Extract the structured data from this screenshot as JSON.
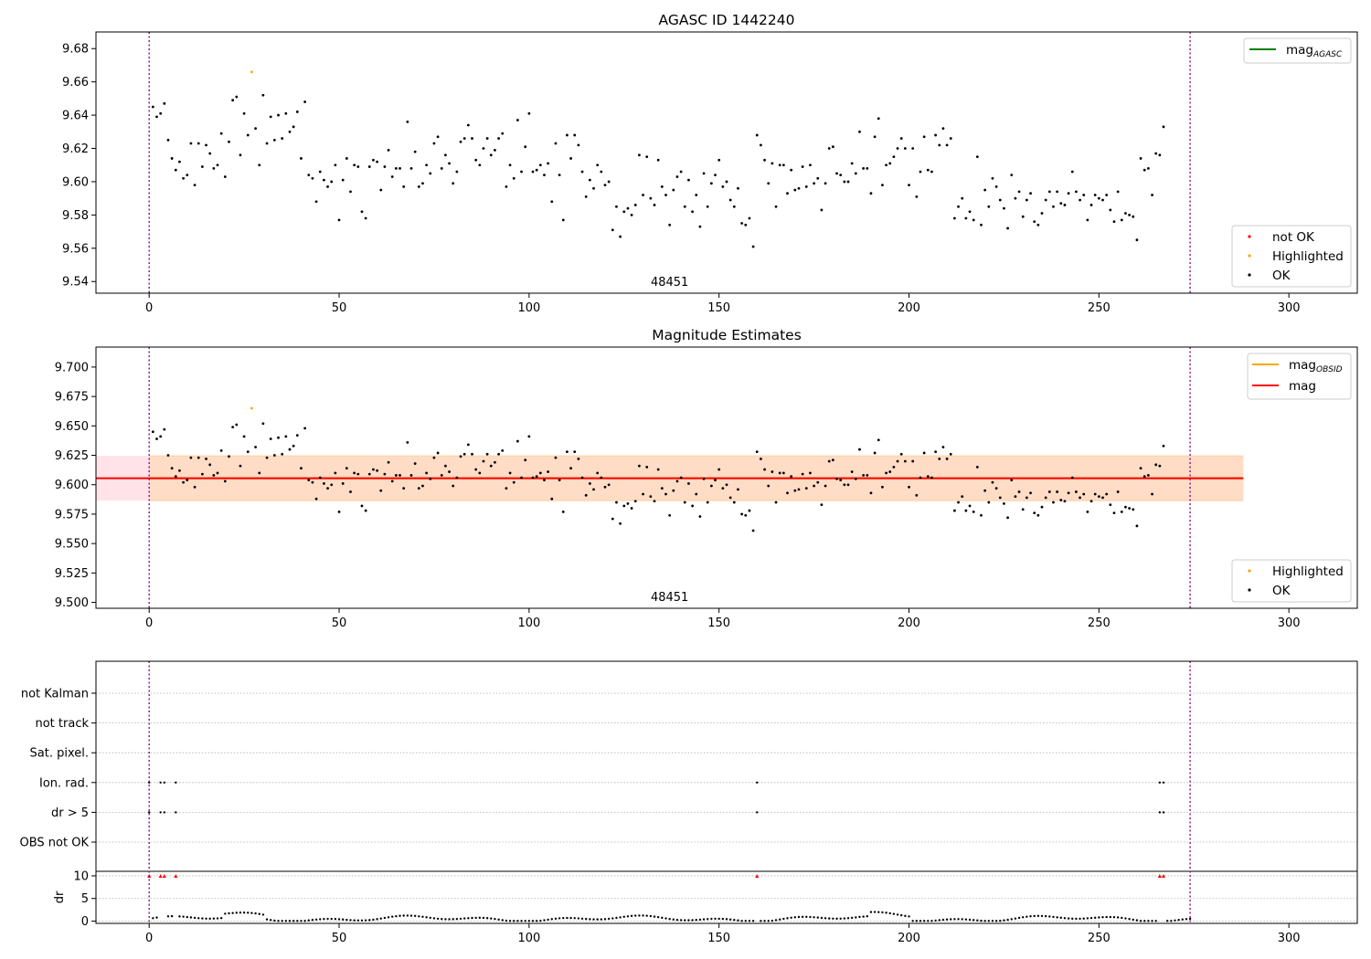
{
  "colors": {
    "ok": "#000000",
    "highlighted": "#FFA500",
    "not_ok": "#FF0000",
    "mag_agasc_line": "#008000",
    "mag_obsid_line": "#FFA500",
    "mag_line": "#FF0000",
    "band_outer": "#FFC0CB",
    "band_inner": "#FFDAB9",
    "obs_boundary": "#800080"
  },
  "chart_data": [
    {
      "type": "scatter",
      "title": "AGASC ID 1442240",
      "xlim": [
        -14,
        318
      ],
      "ylim": [
        9.533,
        9.69
      ],
      "xticks": [
        0,
        50,
        100,
        150,
        200,
        250,
        300
      ],
      "xtick_labels": [
        "0",
        "50",
        "100",
        "150",
        "200",
        "250",
        "300"
      ],
      "yticks": [
        9.54,
        9.56,
        9.58,
        9.6,
        9.62,
        9.64,
        9.66,
        9.68
      ],
      "ytick_labels": [
        "9.54",
        "9.56",
        "9.58",
        "9.60",
        "9.62",
        "9.64",
        "9.66",
        "9.68"
      ],
      "grid": false,
      "annotation": {
        "text": "48451",
        "x": 137
      },
      "obs_boundaries": [
        0,
        274
      ],
      "legend_upper": {
        "position": "top-right",
        "entries": [
          {
            "label": "mag",
            "subscript": "AGASC",
            "color": "#008000"
          }
        ]
      },
      "legend_lower": {
        "position": "bottom-right",
        "entries": [
          {
            "label": "not OK",
            "color": "#FF0000"
          },
          {
            "label": "Highlighted",
            "color": "#FFA500"
          },
          {
            "label": "OK",
            "color": "#000000"
          }
        ]
      },
      "highlighted": [
        {
          "x": 27,
          "y": 9.666
        }
      ],
      "y": [
        9.645,
        9.639,
        9.641,
        9.647,
        9.625,
        9.614,
        9.607,
        9.612,
        9.602,
        9.604,
        9.623,
        9.598,
        9.623,
        9.609,
        9.622,
        9.617,
        9.608,
        9.61,
        9.629,
        9.603,
        9.624,
        9.649,
        9.651,
        9.616,
        9.641,
        9.628,
        9.639,
        9.632,
        9.61,
        9.652,
        9.623,
        9.639,
        9.625,
        9.64,
        9.626,
        9.641,
        9.63,
        9.633,
        9.642,
        9.614,
        9.648,
        9.604,
        9.602,
        9.588,
        9.606,
        9.601,
        9.597,
        9.6,
        9.61,
        9.577,
        9.601,
        9.614,
        9.594,
        9.61,
        9.609,
        9.582,
        9.578,
        9.609,
        9.613,
        9.612,
        9.595,
        9.609,
        9.619,
        9.603,
        9.608,
        9.608,
        9.597,
        9.636,
        9.608,
        9.618,
        9.597,
        9.599,
        9.61,
        9.605,
        9.623,
        9.627,
        9.608,
        9.616,
        9.611,
        9.599,
        9.606,
        9.624,
        9.626,
        9.634,
        9.626,
        9.613,
        9.61,
        9.62,
        9.626,
        9.616,
        9.619,
        9.626,
        9.629,
        9.597,
        9.61,
        9.602,
        9.637,
        9.606,
        9.621,
        9.641,
        9.606,
        9.607,
        9.61,
        9.604,
        9.611,
        9.588,
        9.623,
        9.604,
        9.577,
        9.628,
        9.614,
        9.628,
        9.622,
        9.606,
        9.591,
        9.601,
        9.596,
        9.61,
        9.606,
        9.598,
        9.6,
        9.571,
        9.585,
        9.567,
        9.582,
        9.584,
        9.58,
        9.586,
        9.616,
        9.592,
        9.615,
        9.59,
        9.586,
        9.613,
        9.597,
        9.592,
        9.574,
        9.595,
        9.603,
        9.606,
        9.585,
        9.601,
        9.582,
        9.592,
        9.573,
        9.605,
        9.585,
        9.599,
        9.604,
        9.613,
        9.597,
        9.6,
        9.589,
        9.585,
        9.596,
        9.575,
        9.574,
        9.578,
        9.561,
        9.628,
        9.622,
        9.613,
        9.599,
        9.611,
        9.585,
        9.61,
        9.61,
        9.593,
        9.607,
        9.595,
        9.596,
        9.609,
        9.597,
        9.61,
        9.599,
        9.602,
        9.583,
        9.599,
        9.62,
        9.621,
        9.605,
        9.604,
        9.6,
        9.6,
        9.611,
        9.605,
        9.63,
        9.608,
        9.608,
        9.593,
        9.627,
        9.638,
        9.598,
        9.61,
        9.611,
        9.615,
        9.62,
        9.626,
        9.62,
        9.598,
        9.62,
        9.591,
        9.606,
        9.627,
        9.607,
        9.606,
        9.628,
        9.622,
        9.632,
        9.622,
        9.626,
        9.578,
        9.585,
        9.59,
        9.578,
        9.582,
        9.577,
        9.615,
        9.574,
        9.595,
        9.585,
        9.602,
        9.597,
        9.589,
        9.584,
        9.572,
        9.604,
        9.59,
        9.594,
        9.579,
        9.589,
        9.593,
        9.576,
        9.574,
        9.581,
        9.589,
        9.594,
        9.585,
        9.594,
        9.587,
        9.586,
        9.593,
        9.606,
        9.594,
        9.589,
        9.592,
        9.577,
        9.586,
        9.592,
        9.59,
        9.589,
        9.592,
        9.583,
        9.576,
        9.594,
        9.577,
        9.581,
        9.58,
        9.579,
        9.565,
        9.614,
        9.607,
        9.608,
        9.592,
        9.617,
        9.616,
        9.633
      ]
    },
    {
      "type": "scatter",
      "title": "Magnitude Estimates",
      "xlim": [
        -14,
        318
      ],
      "ylim": [
        9.495,
        9.717
      ],
      "xticks": [
        0,
        50,
        100,
        150,
        200,
        250,
        300
      ],
      "xtick_labels": [
        "0",
        "50",
        "100",
        "150",
        "200",
        "250",
        "300"
      ],
      "yticks": [
        9.5,
        9.525,
        9.55,
        9.575,
        9.6,
        9.625,
        9.65,
        9.675,
        9.7
      ],
      "ytick_labels": [
        "9.500",
        "9.525",
        "9.550",
        "9.575",
        "9.600",
        "9.625",
        "9.650",
        "9.675",
        "9.700"
      ],
      "grid": false,
      "annotation": {
        "text": "48451",
        "x": 137
      },
      "obs_boundaries": [
        0,
        274
      ],
      "mag": 9.6055,
      "mag_band": [
        9.5865,
        9.6245
      ],
      "mag_line_x": [
        -14,
        288
      ],
      "mag_obsid_band": {
        "x": [
          0,
          288
        ],
        "y": [
          9.5865,
          9.6245
        ]
      },
      "legend_upper": {
        "position": "top-right",
        "entries": [
          {
            "label": "mag",
            "subscript": "OBSID",
            "color": "#FFA500"
          },
          {
            "label": "mag",
            "subscript": "",
            "color": "#FF0000"
          }
        ]
      },
      "legend_lower": {
        "position": "bottom-right",
        "entries": [
          {
            "label": "Highlighted",
            "color": "#FFA500"
          },
          {
            "label": "OK",
            "color": "#000000"
          }
        ]
      },
      "highlighted": [
        {
          "x": 27,
          "y": 9.665
        }
      ],
      "y_same_as_panel": 0
    },
    {
      "type": "scatter",
      "title": "",
      "xlim": [
        -14,
        318
      ],
      "xticks": [
        0,
        50,
        100,
        150,
        200,
        250,
        300
      ],
      "xtick_labels": [
        "0",
        "50",
        "100",
        "150",
        "200",
        "250",
        "300"
      ],
      "obs_boundaries": [
        0,
        274
      ],
      "flag_rows": [
        "not Kalman",
        "not track",
        "Sat. pixel.",
        "Ion. rad.",
        "dr > 5",
        "OBS not OK"
      ],
      "flags": {
        "Ion. rad.": [
          0,
          3,
          4,
          7,
          160,
          266,
          267
        ],
        "dr > 5": [
          0,
          3,
          4,
          7,
          160,
          266,
          267
        ]
      },
      "dr": {
        "ylabel": "dr",
        "ylim": [
          -0.5,
          11
        ],
        "yticks": [
          0,
          5,
          10
        ],
        "ytick_labels": [
          "0",
          "5",
          "10"
        ],
        "clipped_x": [
          0,
          3,
          4,
          7,
          160,
          266,
          267
        ],
        "clipped_value": 10
      }
    }
  ]
}
